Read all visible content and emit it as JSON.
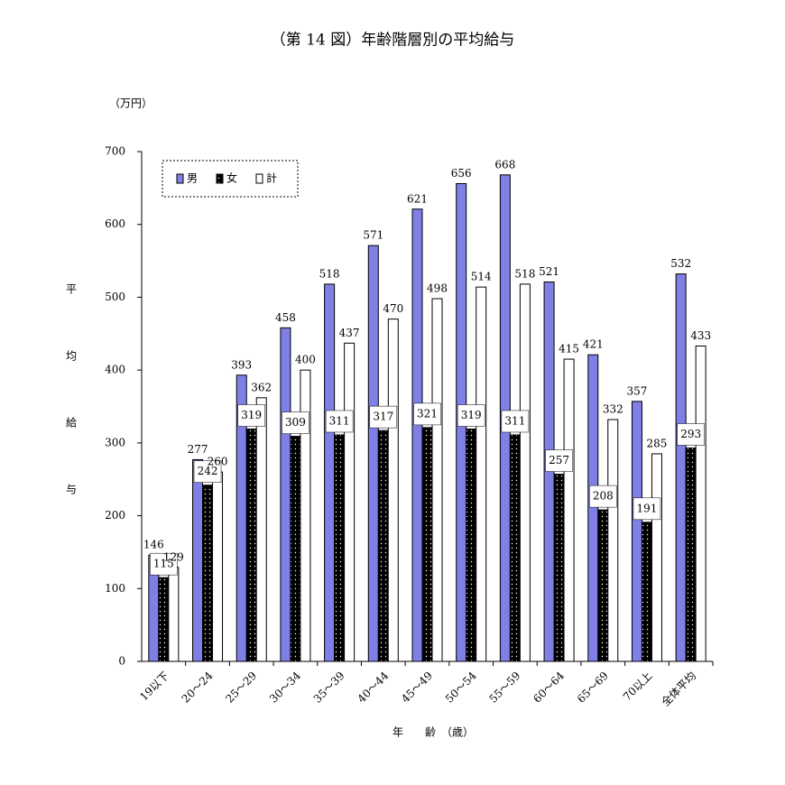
{
  "chart_data": {
    "type": "bar",
    "title": "（第 14 図）年齢階層別の平均給与",
    "unit_label": "（万円）",
    "y_label": "平均給与",
    "x_label": "年　　齢　（歳）",
    "categories": [
      "19以下",
      "20～24",
      "25～29",
      "30～34",
      "35～39",
      "40～44",
      "45～49",
      "50～54",
      "55～59",
      "60～64",
      "65～69",
      "70以上",
      "全体平均"
    ],
    "series": [
      {
        "name": "男",
        "color": "#7f7fe6",
        "values": [
          146,
          277,
          393,
          458,
          518,
          571,
          621,
          656,
          668,
          521,
          421,
          357,
          532
        ]
      },
      {
        "name": "女",
        "color": "#000000",
        "values": [
          115,
          242,
          319,
          309,
          311,
          317,
          321,
          319,
          311,
          257,
          208,
          191,
          293
        ]
      },
      {
        "name": "計",
        "color": "#ffffff",
        "values": [
          129,
          260,
          362,
          400,
          437,
          470,
          498,
          514,
          518,
          415,
          332,
          285,
          433
        ]
      }
    ],
    "ylim": [
      0,
      700
    ],
    "yticks": [
      0,
      100,
      200,
      300,
      400,
      500,
      600,
      700
    ],
    "grid": false
  }
}
